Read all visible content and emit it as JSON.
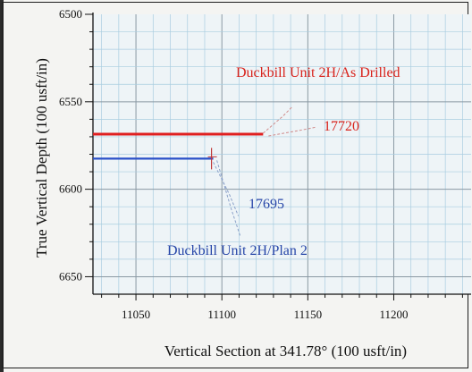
{
  "chart_data": {
    "type": "line",
    "xlabel": "Vertical Section at 341.78° (100 usft/in)",
    "ylabel": "True Vertical Depth (100 usft/in)",
    "xlim": [
      11025,
      11245
    ],
    "ylim": [
      6500,
      6660
    ],
    "y_inverted": true,
    "x_ticks": [
      11050,
      11100,
      11150,
      11200
    ],
    "y_ticks": [
      6500,
      6550,
      6600,
      6650
    ],
    "grid": true,
    "series": [
      {
        "name": "Duckbill Unit 2H/As Drilled",
        "color": "#e02020",
        "x": [
          11025,
          11124
        ],
        "y": [
          6568.5,
          6568.5
        ]
      },
      {
        "name": "Duckbill Unit 2H/Plan 2",
        "color": "#2a50c8",
        "x": [
          11025,
          11095
        ],
        "y": [
          6582.5,
          6582.5
        ]
      }
    ],
    "annotations": [
      {
        "text": "Duckbill Unit 2H/As Drilled",
        "color": "#d8231c"
      },
      {
        "text": "17720",
        "color": "#d8231c"
      },
      {
        "text": "17695",
        "color": "#2746a8"
      },
      {
        "text": "Duckbill Unit 2H/Plan 2",
        "color": "#2746a8"
      }
    ]
  }
}
